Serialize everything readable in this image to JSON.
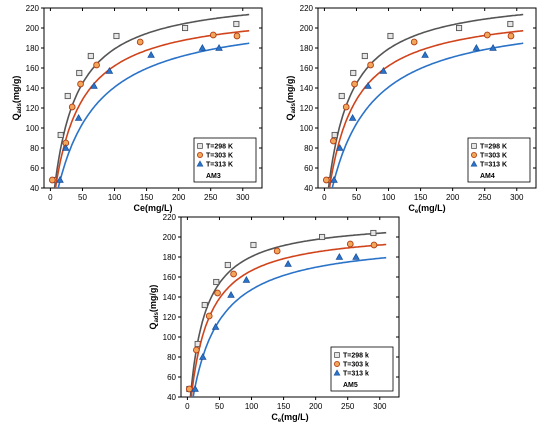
{
  "chart_data": [
    {
      "type": "scatter",
      "title": "",
      "xlabel": "Ce(mg/L)",
      "ylabel": "Q_ads(mg/g)",
      "ylabel_main": "Q",
      "ylabel_sub": "ads",
      "ylabel_unit": "(mg/g)",
      "xlim": [
        -10,
        330
      ],
      "ylim": [
        40,
        220
      ],
      "xticks": [
        0,
        50,
        100,
        150,
        200,
        250,
        300
      ],
      "yticks": [
        40,
        60,
        80,
        100,
        120,
        140,
        160,
        180,
        200,
        220
      ],
      "grid": false,
      "legend_position": "bottom-right",
      "tag": "AM3",
      "series": [
        {
          "name": "T=298 K",
          "color": "#555555",
          "marker": "square",
          "x": [
            5,
            16,
            27,
            45,
            63,
            103,
            210,
            290
          ],
          "y": [
            48,
            93,
            132,
            155,
            172,
            192,
            200,
            204
          ],
          "fit": {
            "qmax": 235,
            "k": 0.032
          }
        },
        {
          "name": "T=303 K",
          "color": "#d0441c",
          "marker": "circle",
          "x": [
            3,
            24,
            34,
            47,
            72,
            140,
            254,
            291
          ],
          "y": [
            48,
            85,
            121,
            144,
            163,
            186,
            193,
            192
          ],
          "fit": {
            "qmax": 220,
            "k": 0.028
          }
        },
        {
          "name": "T=313 K",
          "color": "#2a73c8",
          "marker": "triangle",
          "x": [
            15,
            24,
            44,
            68,
            92,
            157,
            237,
            263
          ],
          "y": [
            48,
            80,
            110,
            142,
            157,
            173,
            180,
            180
          ],
          "fit": {
            "qmax": 217,
            "k": 0.0185
          }
        }
      ]
    },
    {
      "type": "scatter",
      "title": "",
      "xlabel": "Ce(mg/L)",
      "xlabel_main": "C",
      "xlabel_sub": "e",
      "xlabel_unit": "(mg/L)",
      "ylabel": "Q_ads(mg/g)",
      "ylabel_main": "Q",
      "ylabel_sub": "ads",
      "ylabel_unit": "(mg/g)",
      "xlim": [
        -10,
        330
      ],
      "ylim": [
        40,
        220
      ],
      "xticks": [
        0,
        50,
        100,
        150,
        200,
        250,
        300
      ],
      "yticks": [
        40,
        60,
        80,
        100,
        120,
        140,
        160,
        180,
        200,
        220
      ],
      "grid": false,
      "legend_position": "bottom-right",
      "tag": "AM4",
      "series": [
        {
          "name": "T=298 K",
          "color": "#555555",
          "marker": "square",
          "x": [
            5,
            16,
            27,
            45,
            63,
            103,
            210,
            290
          ],
          "y": [
            48,
            93,
            132,
            155,
            172,
            192,
            200,
            204
          ],
          "fit": {
            "qmax": 235,
            "k": 0.032
          }
        },
        {
          "name": "T=303 K",
          "color": "#d0441c",
          "marker": "circle",
          "x": [
            3,
            14,
            34,
            47,
            72,
            140,
            254,
            291
          ],
          "y": [
            48,
            87,
            121,
            144,
            163,
            186,
            193,
            192
          ],
          "fit": {
            "qmax": 220,
            "k": 0.028
          }
        },
        {
          "name": "T=313 K",
          "color": "#2a73c8",
          "marker": "triangle",
          "x": [
            15,
            24,
            44,
            68,
            92,
            157,
            237,
            263
          ],
          "y": [
            48,
            80,
            110,
            142,
            157,
            173,
            180,
            180
          ],
          "fit": {
            "qmax": 217,
            "k": 0.0185
          }
        }
      ]
    },
    {
      "type": "scatter",
      "title": "",
      "xlabel": "Ce(mg/L)",
      "xlabel_main": "C",
      "xlabel_sub": "e",
      "xlabel_unit": "(mg/L)",
      "ylabel": "Q_ads(mg/g)",
      "ylabel_main": "Q",
      "ylabel_sub": "ads",
      "ylabel_unit": "(mg/g)",
      "xlim": [
        -10,
        330
      ],
      "ylim": [
        40,
        220
      ],
      "xticks": [
        0,
        50,
        100,
        150,
        200,
        250,
        300
      ],
      "yticks": [
        40,
        60,
        80,
        100,
        120,
        140,
        160,
        180,
        200,
        220
      ],
      "grid": false,
      "legend_position": "bottom-right",
      "tag": "AM5",
      "series": [
        {
          "name": "T=298 k",
          "color": "#555555",
          "marker": "square",
          "x": [
            3,
            16,
            27,
            45,
            63,
            103,
            210,
            290
          ],
          "y": [
            48,
            93,
            132,
            155,
            172,
            192,
            200,
            204
          ],
          "fit": {
            "qmax": 218,
            "k": 0.048
          }
        },
        {
          "name": "T=303 k",
          "color": "#d0441c",
          "marker": "circle",
          "x": [
            3,
            14,
            34,
            47,
            72,
            140,
            254,
            291
          ],
          "y": [
            48,
            87,
            121,
            144,
            163,
            186,
            193,
            192
          ],
          "fit": {
            "qmax": 208,
            "k": 0.04
          }
        },
        {
          "name": "T=313 k",
          "color": "#2a73c8",
          "marker": "triangle",
          "x": [
            12,
            24,
            44,
            68,
            92,
            157,
            237,
            263
          ],
          "y": [
            48,
            80,
            110,
            142,
            157,
            173,
            180,
            180
          ],
          "fit": {
            "qmax": 200,
            "k": 0.028
          }
        }
      ]
    }
  ]
}
